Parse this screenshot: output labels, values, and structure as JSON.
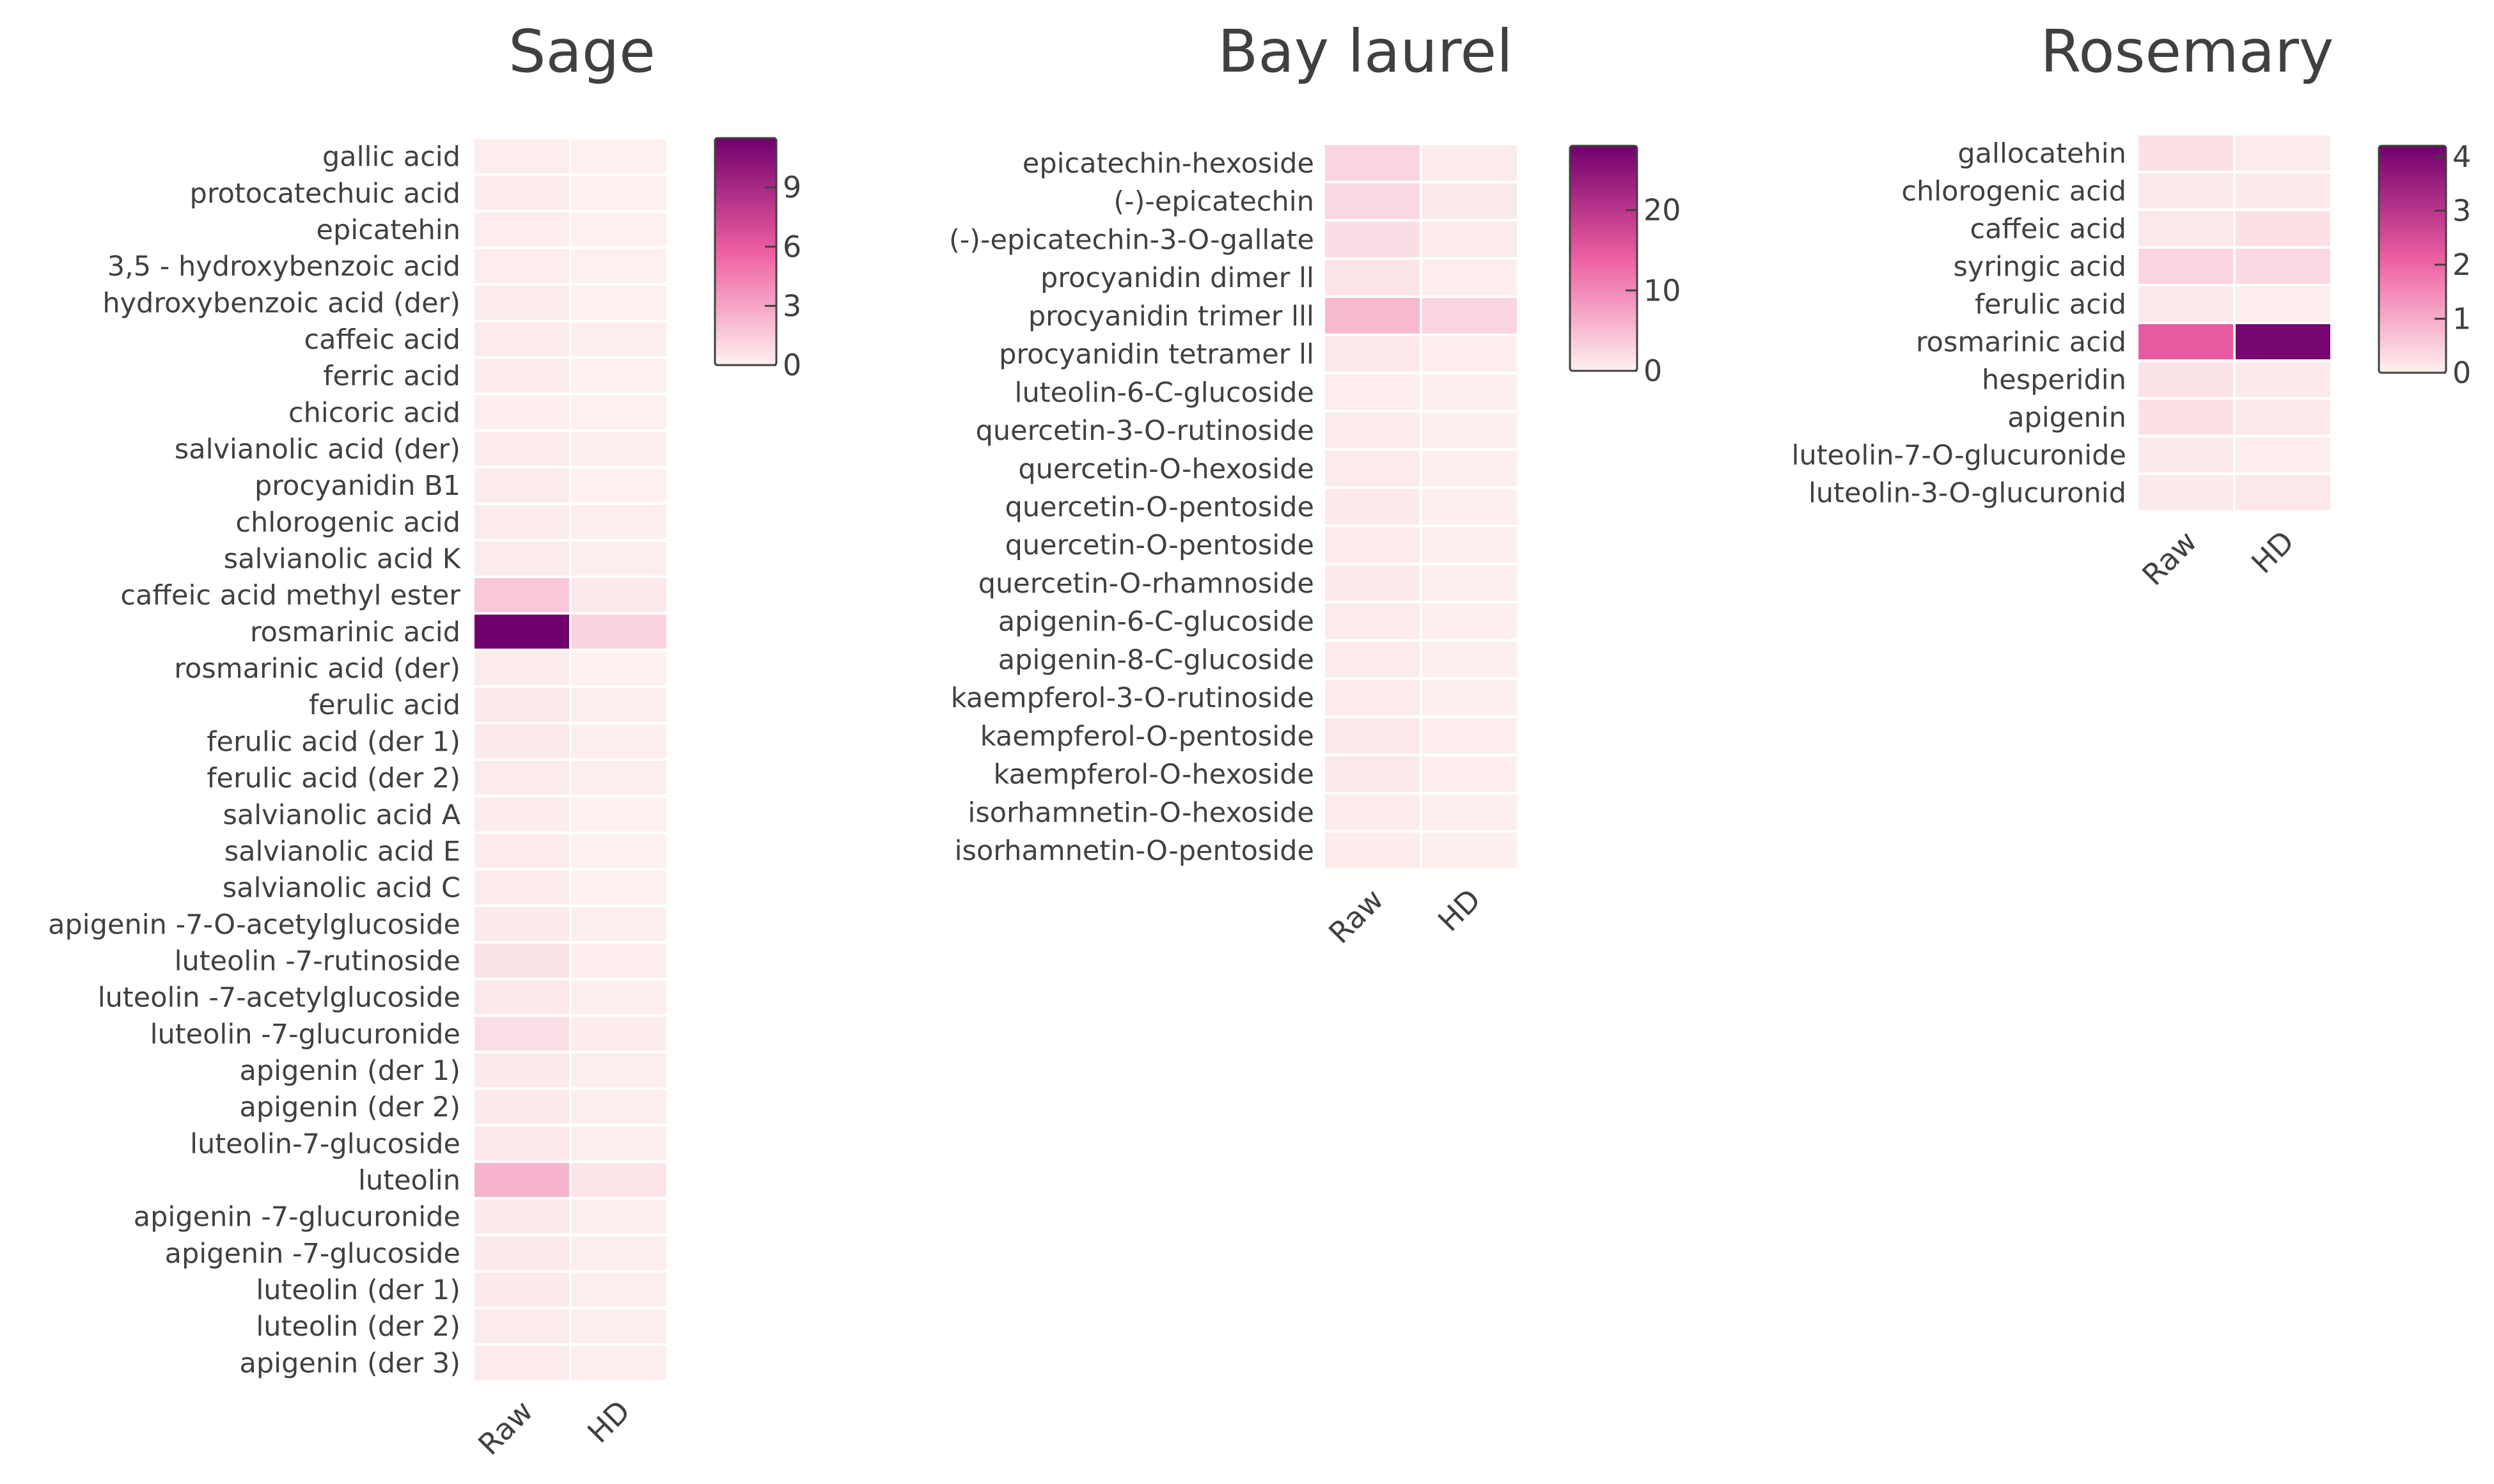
{
  "colorscale": {
    "low": "#fdf1ef",
    "mid": "#ee5fa1",
    "high": "#71006d"
  },
  "chart_data": [
    {
      "type": "heatmap",
      "title": "Sage",
      "columns": [
        "Raw",
        "HD"
      ],
      "rows": [
        "gallic acid",
        "protocatechuic acid",
        "epicatehin",
        "3,5 - hydroxybenzoic acid",
        "hydroxybenzoic acid (der)",
        "caffeic acid",
        "ferric acid",
        "chicoric acid",
        "salvianolic acid (der)",
        "procyanidin B1",
        "chlorogenic acid",
        "salvianolic acid K",
        "caffeic acid methyl ester",
        "rosmarinic acid",
        "rosmarinic acid (der)",
        "ferulic acid",
        "ferulic acid (der 1)",
        "ferulic acid (der 2)",
        "salvianolic acid A",
        "salvianolic acid E",
        "salvianolic acid C",
        "apigenin -7-O-acetylglucoside",
        "luteolin -7-rutinoside",
        "luteolin -7-acetylglucoside",
        "luteolin -7-glucuronide",
        "apigenin (der 1)",
        "apigenin (der 2)",
        "luteolin-7-glucoside",
        "luteolin",
        "apigenin -7-glucuronide",
        "apigenin -7-glucoside",
        "luteolin (der 1)",
        "luteolin (der 2)",
        "apigenin (der 3)"
      ],
      "values": [
        [
          0.15,
          0.05
        ],
        [
          0.2,
          0.05
        ],
        [
          0.15,
          0.05
        ],
        [
          0.15,
          0.05
        ],
        [
          0.2,
          0.05
        ],
        [
          0.25,
          0.1
        ],
        [
          0.2,
          0.05
        ],
        [
          0.15,
          0.05
        ],
        [
          0.2,
          0.1
        ],
        [
          0.2,
          0.05
        ],
        [
          0.25,
          0.1
        ],
        [
          0.25,
          0.1
        ],
        [
          1.6,
          0.35
        ],
        [
          11.5,
          1.2
        ],
        [
          0.25,
          0.05
        ],
        [
          0.3,
          0.1
        ],
        [
          0.3,
          0.1
        ],
        [
          0.25,
          0.1
        ],
        [
          0.2,
          0.05
        ],
        [
          0.2,
          0.05
        ],
        [
          0.25,
          0.05
        ],
        [
          0.3,
          0.1
        ],
        [
          0.55,
          0.15
        ],
        [
          0.35,
          0.1
        ],
        [
          0.7,
          0.2
        ],
        [
          0.3,
          0.1
        ],
        [
          0.3,
          0.1
        ],
        [
          0.4,
          0.1
        ],
        [
          2.4,
          0.5
        ],
        [
          0.3,
          0.1
        ],
        [
          0.3,
          0.1
        ],
        [
          0.3,
          0.1
        ],
        [
          0.25,
          0.1
        ],
        [
          0.25,
          0.1
        ]
      ],
      "zlim": [
        0,
        11.5
      ],
      "colorbar_ticks": [
        0,
        3,
        6,
        9
      ]
    },
    {
      "type": "heatmap",
      "title": "Bay laurel",
      "columns": [
        "Raw",
        "HD"
      ],
      "rows": [
        "epicatechin-hexoside",
        "(-)-epicatechin",
        "(-)-epicatechin-3-O-gallate",
        "procyanidin dimer ll",
        "procyanidin trimer lll",
        "procyanidin tetramer ll",
        "luteolin-6-C-glucoside",
        "quercetin-3-O-rutinoside",
        "quercetin-O-hexoside",
        "quercetin-O-pentoside",
        "quercetin-O-pentoside",
        "quercetin-O-rhamnoside",
        "apigenin-6-C-glucoside",
        "apigenin-8-C-glucoside",
        "kaempferol-3-O-rutinoside",
        "kaempferol-O-pentoside",
        "kaempferol-O-hexoside",
        "isorhamnetin-O-hexoside",
        "isorhamnetin-O-pentoside"
      ],
      "values": [
        [
          2.8,
          0.6
        ],
        [
          2.4,
          0.7
        ],
        [
          1.8,
          0.6
        ],
        [
          1.2,
          0.4
        ],
        [
          5.5,
          2.8
        ],
        [
          0.9,
          0.3
        ],
        [
          0.4,
          0.2
        ],
        [
          0.5,
          0.2
        ],
        [
          0.6,
          0.2
        ],
        [
          0.7,
          0.2
        ],
        [
          0.6,
          0.2
        ],
        [
          0.7,
          0.2
        ],
        [
          0.6,
          0.2
        ],
        [
          0.6,
          0.2
        ],
        [
          0.6,
          0.2
        ],
        [
          0.9,
          0.3
        ],
        [
          0.8,
          0.3
        ],
        [
          0.5,
          0.2
        ],
        [
          0.5,
          0.2
        ]
      ],
      "zlim": [
        0,
        28
      ],
      "colorbar_ticks": [
        0,
        10,
        20
      ]
    },
    {
      "type": "heatmap",
      "title": "Rosemary",
      "columns": [
        "Raw",
        "HD"
      ],
      "rows": [
        "gallocatehin",
        "chlorogenic acid",
        "caffeic acid",
        "syringic acid",
        "ferulic acid",
        "rosmarinic acid",
        "hesperidin",
        "apigenin",
        "luteolin-7-O-glucuronide",
        "luteolin-3-O-glucuronid"
      ],
      "values": [
        [
          0.25,
          0.08
        ],
        [
          0.12,
          0.1
        ],
        [
          0.15,
          0.25
        ],
        [
          0.4,
          0.35
        ],
        [
          0.12,
          0.05
        ],
        [
          2.2,
          4.1
        ],
        [
          0.2,
          0.1
        ],
        [
          0.25,
          0.12
        ],
        [
          0.1,
          0.05
        ],
        [
          0.12,
          0.15
        ]
      ],
      "zlim": [
        0,
        4.2
      ],
      "colorbar_ticks": [
        0,
        1,
        2,
        3,
        4
      ]
    }
  ]
}
